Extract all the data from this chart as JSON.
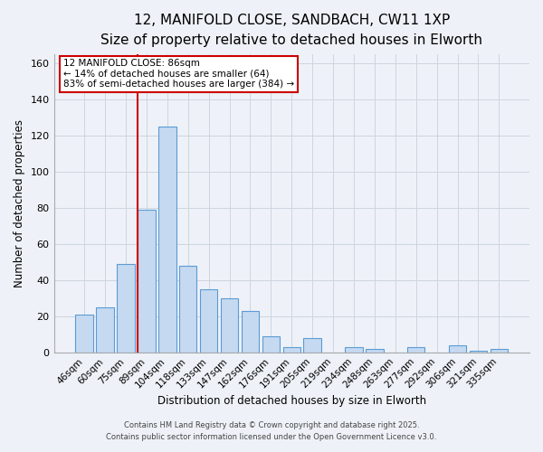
{
  "title": "12, MANIFOLD CLOSE, SANDBACH, CW11 1XP",
  "subtitle": "Size of property relative to detached houses in Elworth",
  "xlabel": "Distribution of detached houses by size in Elworth",
  "ylabel": "Number of detached properties",
  "categories": [
    "46sqm",
    "60sqm",
    "75sqm",
    "89sqm",
    "104sqm",
    "118sqm",
    "133sqm",
    "147sqm",
    "162sqm",
    "176sqm",
    "191sqm",
    "205sqm",
    "219sqm",
    "234sqm",
    "248sqm",
    "263sqm",
    "277sqm",
    "292sqm",
    "306sqm",
    "321sqm",
    "335sqm"
  ],
  "values": [
    21,
    25,
    49,
    79,
    125,
    48,
    35,
    30,
    23,
    9,
    3,
    8,
    0,
    3,
    2,
    0,
    3,
    0,
    4,
    1,
    2
  ],
  "bar_color": "#c5d9f0",
  "bar_edge_color": "#5b9bd5",
  "vline_index": 3,
  "vline_color": "#cc0000",
  "annotation_line1": "12 MANIFOLD CLOSE: 86sqm",
  "annotation_line2": "← 14% of detached houses are smaller (64)",
  "annotation_line3": "83% of semi-detached houses are larger (384) →",
  "annotation_box_color": "#ffffff",
  "annotation_box_edge": "#cc0000",
  "ylim": [
    0,
    165
  ],
  "yticks": [
    0,
    20,
    40,
    60,
    80,
    100,
    120,
    140,
    160
  ],
  "grid_color": "#ccd5e0",
  "bg_color": "#eef2f8",
  "footnote1": "Contains HM Land Registry data © Crown copyright and database right 2025.",
  "footnote2": "Contains public sector information licensed under the Open Government Licence v3.0.",
  "title_fontsize": 11,
  "subtitle_fontsize": 9,
  "annotation_fontsize": 7.5
}
